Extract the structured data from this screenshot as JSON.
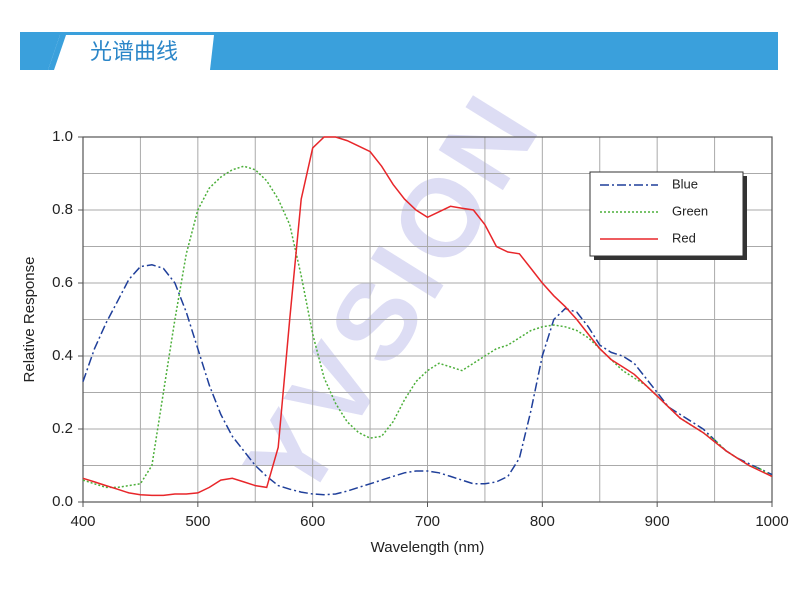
{
  "header": {
    "title": "光谱曲线"
  },
  "chart_data": {
    "type": "line",
    "watermark": "YVSION",
    "xlabel": "Wavelength (nm)",
    "ylabel": "Relative Response",
    "xlim": [
      400,
      1000
    ],
    "ylim": [
      0,
      1
    ],
    "xticks": [
      400,
      500,
      600,
      700,
      800,
      900,
      1000
    ],
    "yticks": [
      {
        "value": 0,
        "label": "0.0"
      },
      0.2,
      0.4,
      0.6,
      0.8,
      {
        "value": 1,
        "label": "1.0"
      }
    ],
    "xgrid": [
      450,
      500,
      550,
      600,
      650,
      700,
      750,
      800,
      850,
      900,
      950
    ],
    "ygrid": [
      0.1,
      0.2,
      0.3,
      0.4,
      0.5,
      0.6,
      0.7,
      0.8,
      0.9
    ],
    "grid": true,
    "legend": "upper right",
    "x": [
      400,
      410,
      420,
      430,
      440,
      450,
      460,
      470,
      480,
      490,
      500,
      510,
      520,
      530,
      540,
      550,
      560,
      570,
      580,
      590,
      600,
      610,
      620,
      630,
      640,
      650,
      660,
      670,
      680,
      690,
      700,
      710,
      720,
      730,
      740,
      750,
      760,
      770,
      780,
      790,
      800,
      810,
      820,
      830,
      840,
      850,
      860,
      870,
      880,
      890,
      900,
      910,
      920,
      930,
      940,
      950,
      960,
      970,
      980,
      990,
      1000
    ],
    "series": [
      {
        "name": "Blue",
        "color": "#1f3f9a",
        "style": "dashdot",
        "values": [
          0.33,
          0.42,
          0.49,
          0.55,
          0.61,
          0.645,
          0.65,
          0.64,
          0.6,
          0.52,
          0.42,
          0.32,
          0.24,
          0.18,
          0.14,
          0.1,
          0.07,
          0.045,
          0.035,
          0.027,
          0.022,
          0.02,
          0.022,
          0.03,
          0.04,
          0.05,
          0.06,
          0.07,
          0.08,
          0.085,
          0.085,
          0.08,
          0.07,
          0.06,
          0.05,
          0.05,
          0.055,
          0.07,
          0.12,
          0.25,
          0.4,
          0.5,
          0.53,
          0.52,
          0.48,
          0.43,
          0.41,
          0.4,
          0.38,
          0.34,
          0.3,
          0.26,
          0.24,
          0.22,
          0.2,
          0.17,
          0.14,
          0.12,
          0.105,
          0.09,
          0.075
        ]
      },
      {
        "name": "Green",
        "color": "#4caf3a",
        "style": "dotted",
        "values": [
          0.06,
          0.05,
          0.04,
          0.04,
          0.045,
          0.05,
          0.1,
          0.3,
          0.5,
          0.68,
          0.8,
          0.86,
          0.89,
          0.91,
          0.92,
          0.91,
          0.88,
          0.83,
          0.76,
          0.62,
          0.46,
          0.34,
          0.27,
          0.22,
          0.19,
          0.175,
          0.18,
          0.22,
          0.28,
          0.33,
          0.36,
          0.38,
          0.37,
          0.36,
          0.38,
          0.4,
          0.42,
          0.43,
          0.45,
          0.47,
          0.48,
          0.485,
          0.48,
          0.47,
          0.45,
          0.42,
          0.39,
          0.36,
          0.34,
          0.32,
          0.29,
          0.26,
          0.23,
          0.21,
          0.19,
          0.17,
          0.14,
          0.12,
          0.1,
          0.09,
          0.07
        ]
      },
      {
        "name": "Red",
        "color": "#e8262a",
        "style": "solid",
        "values": [
          0.065,
          0.055,
          0.045,
          0.035,
          0.025,
          0.02,
          0.018,
          0.018,
          0.022,
          0.022,
          0.025,
          0.04,
          0.06,
          0.065,
          0.055,
          0.045,
          0.04,
          0.15,
          0.5,
          0.83,
          0.97,
          1.0,
          1.0,
          0.99,
          0.975,
          0.96,
          0.92,
          0.87,
          0.83,
          0.8,
          0.78,
          0.795,
          0.81,
          0.805,
          0.8,
          0.76,
          0.7,
          0.685,
          0.68,
          0.64,
          0.6,
          0.565,
          0.535,
          0.5,
          0.46,
          0.42,
          0.39,
          0.37,
          0.35,
          0.32,
          0.29,
          0.26,
          0.23,
          0.21,
          0.19,
          0.165,
          0.14,
          0.12,
          0.1,
          0.085,
          0.07
        ]
      }
    ]
  }
}
